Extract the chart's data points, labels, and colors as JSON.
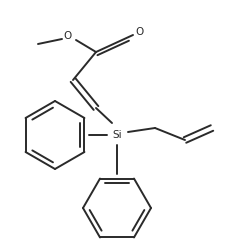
{
  "background": "#ffffff",
  "line_color": "#2a2a2a",
  "line_width": 1.4,
  "si_label": "Si",
  "text_color": "#2a2a2a",
  "font_size": 7.5
}
